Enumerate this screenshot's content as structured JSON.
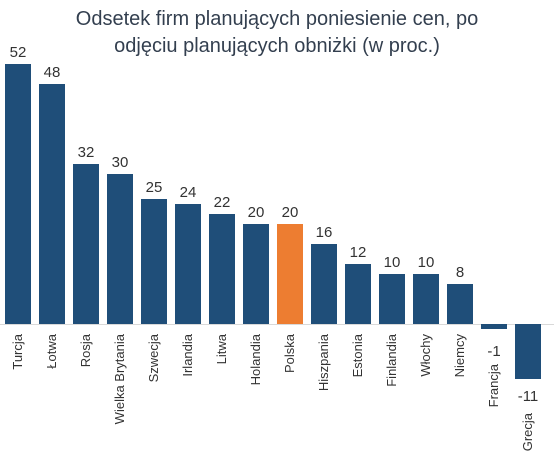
{
  "title_lines": [
    "Odsetek firm planujących poniesienie cen, po",
    "odjęciu planujących obniżki (w proc.)"
  ],
  "colors": {
    "bar": "#1f4e79",
    "highlight": "#ed7d31",
    "baseline": "#d9d9d9"
  },
  "chart_data": {
    "type": "bar",
    "title": "Odsetek firm planujących poniesienie cen, po odjęciu planujących obniżki (w proc.)",
    "categories": [
      "Turcja",
      "Łotwa",
      "Rosja",
      "Wielka Brytania",
      "Szwecja",
      "Irlandia",
      "Litwa",
      "Holandia",
      "Polska",
      "Hiszpania",
      "Estonia",
      "Finlandia",
      "Włochy",
      "Niemcy",
      "Francja",
      "Grecja"
    ],
    "values": [
      52,
      48,
      32,
      30,
      25,
      24,
      22,
      20,
      20,
      16,
      12,
      10,
      10,
      8,
      -1,
      -11
    ],
    "highlight": "Polska",
    "ylim": [
      -11,
      52
    ],
    "grid": false,
    "xlabel": "",
    "ylabel": ""
  }
}
